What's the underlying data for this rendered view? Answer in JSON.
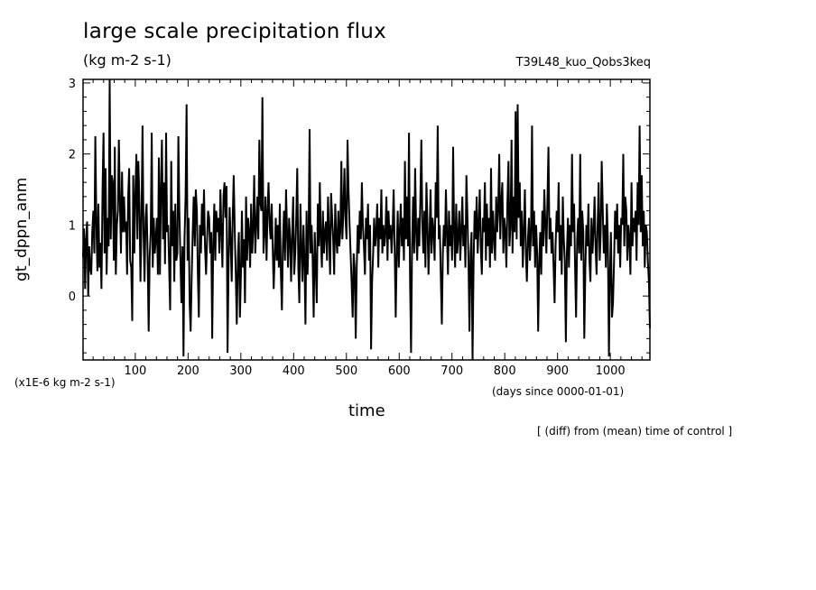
{
  "chart_data": {
    "type": "line",
    "title": "large scale precipitation flux",
    "subtitle": "(kg m-2 s-1)",
    "run_label": "T39L48_kuo_Qobs3keq",
    "ylabel": "gt_dppn_anm",
    "xlabel": "time",
    "y_scale_note": "(x1E-6 kg m-2 s-1)",
    "x_unit_note": "(days since 0000-01-01)",
    "footnote": "[ (diff) from (mean) time of control ]",
    "xlim": [
      1,
      1075
    ],
    "ylim": [
      -0.9,
      3.05
    ],
    "x_ticks": [
      100,
      200,
      300,
      400,
      500,
      600,
      700,
      800,
      900,
      1000
    ],
    "y_ticks": [
      0,
      1,
      2,
      3
    ],
    "grid": false,
    "series": [
      {
        "values": [
          0.55,
          0.95,
          0.1,
          0.8,
          1.05,
          0.0,
          0.7,
          0.4,
          0.3,
          0.9,
          1.2,
          0.6,
          2.25,
          1.0,
          0.35,
          1.3,
          0.4,
          0.75,
          0.1,
          1.5,
          2.3,
          0.6,
          1.8,
          0.3,
          1.1,
          0.7,
          3.05,
          0.8,
          1.7,
          1.6,
          0.5,
          2.1,
          0.3,
          1.0,
          1.2,
          2.2,
          1.3,
          0.6,
          1.75,
          0.9,
          1.4,
          0.9,
          1.05,
          0.3,
          1.4,
          1.8,
          0.5,
          0.4,
          -0.35,
          1.7,
          0.6,
          1.4,
          2.0,
          0.8,
          1.9,
          1.3,
          0.2,
          1.0,
          2.4,
          0.9,
          0.2,
          1.1,
          1.3,
          0.6,
          -0.5,
          0.55,
          0.9,
          2.3,
          0.4,
          1.1,
          0.6,
          0.8,
          1.1,
          0.3,
          1.95,
          0.3,
          1.5,
          2.2,
          0.8,
          1.6,
          0.45,
          2.3,
          0.9,
          1.0,
          0.4,
          -0.2,
          1.9,
          0.7,
          1.2,
          0.2,
          1.3,
          0.5,
          0.6,
          2.25,
          1.2,
          0.5,
          -0.1,
          0.7,
          -0.85,
          0.8,
          1.4,
          2.7,
          0.5,
          1.1,
          -0.1,
          -0.5,
          0.3,
          0.9,
          1.4,
          0.7,
          1.5,
          1.2,
          0.3,
          -0.3,
          1.0,
          0.6,
          1.3,
          0.85,
          1.5,
          0.7,
          0.3,
          0.8,
          1.2,
          1.1,
          0.6,
          0.9,
          -0.6,
          0.7,
          1.3,
          0.5,
          1.2,
          0.9,
          1.1,
          0.6,
          1.5,
          0.9,
          0.4,
          1.4,
          1.6,
          1.1,
          1.55,
          -0.8,
          0.5,
          1.25,
          0.8,
          0.2,
          1.1,
          1.7,
          0.9,
          0.3,
          -0.4,
          0.5,
          0.9,
          -0.3,
          0.3,
          1.2,
          0.4,
          0.8,
          -0.1,
          1.4,
          0.5,
          1.1,
          0.9,
          0.4,
          1.3,
          0.6,
          0.95,
          1.7,
          0.6,
          1.0,
          1.4,
          0.8,
          2.2,
          1.3,
          1.2,
          2.8,
          0.6,
          0.9,
          1.4,
          0.5,
          1.2,
          1.6,
          1.0,
          0.8,
          1.3,
          0.7,
          0.1,
          0.6,
          1.1,
          0.5,
          1.0,
          0.4,
          1.3,
          0.3,
          -0.2,
          0.7,
          1.2,
          0.5,
          1.5,
          0.9,
          0.4,
          1.1,
          0.8,
          0.2,
          0.9,
          1.4,
          0.3,
          0.6,
          1.1,
          1.8,
          0.4,
          -0.1,
          1.3,
          0.7,
          0.2,
          1.0,
          0.5,
          -0.4,
          1.2,
          0.3,
          0.8,
          2.35,
          0.6,
          1.0,
          0.5,
          -0.3,
          0.9,
          0.4,
          -0.1,
          1.3,
          0.7,
          1.6,
          0.8,
          0.4,
          1.2,
          0.6,
          0.9,
          1.05,
          0.5,
          1.4,
          0.9,
          0.3,
          1.45,
          1.1,
          0.8,
          0.3,
          1.3,
          0.8,
          0.6,
          1.2,
          0.7,
          0.9,
          1.9,
          0.8,
          1.2,
          1.8,
          1.1,
          0.8,
          2.2,
          1.5,
          1.0,
          0.6,
          0.2,
          -0.3,
          0.6,
          0.4,
          -0.6,
          0.4,
          1.0,
          0.6,
          1.2,
          0.8,
          1.6,
          1.0,
          0.7,
          0.3,
          1.1,
          0.8,
          1.3,
          0.5,
          1.0,
          -0.75,
          0.2,
          0.6,
          1.1,
          0.7,
          0.9,
          1.3,
          0.4,
          1.1,
          0.8,
          1.5,
          0.6,
          1.0,
          0.7,
          0.9,
          1.4,
          0.5,
          1.2,
          0.8,
          1.0,
          0.6,
          0.95,
          1.5,
          0.7,
          -0.3,
          0.6,
          1.2,
          0.4,
          0.9,
          1.3,
          0.7,
          1.1,
          0.5,
          1.9,
          0.8,
          1.4,
          0.7,
          2.3,
          0.2,
          -0.8,
          0.7,
          1.4,
          0.6,
          1.8,
          0.9,
          0.5,
          1.1,
          0.7,
          1.3,
          2.2,
          1.0,
          0.6,
          1.2,
          0.4,
          1.6,
          1.0,
          0.3,
          0.8,
          1.5,
          0.6,
          1.1,
          0.9,
          0.5,
          1.6,
          1.1,
          2.4,
          0.8,
          1.0,
          0.3,
          -0.4,
          0.6,
          1.0,
          0.7,
          1.5,
          0.9,
          0.3,
          1.2,
          0.7,
          1.0,
          0.5,
          2.1,
          0.9,
          0.4,
          1.3,
          0.6,
          0.8,
          1.2,
          0.5,
          0.9,
          1.4,
          0.7,
          1.0,
          0.4,
          1.7,
          1.1,
          0.5,
          -0.5,
          0.6,
          0.9,
          -0.9,
          0.5,
          1.2,
          0.8,
          1.4,
          0.6,
          1.0,
          1.5,
          0.7,
          0.3,
          1.1,
          0.9,
          1.6,
          0.5,
          1.3,
          0.7,
          1.1,
          0.4,
          1.8,
          0.6,
          1.2,
          0.8,
          0.5,
          1.4,
          0.9,
          1.2,
          2.0,
          0.8,
          1.3,
          1.6,
          0.6,
          1.1,
          0.9,
          0.4,
          1.3,
          1.9,
          0.7,
          1.0,
          2.2,
          0.6,
          1.4,
          0.9,
          2.6,
          0.8,
          2.7,
          1.1,
          1.6,
          0.7,
          1.2,
          0.4,
          0.9,
          1.5,
          0.6,
          0.2,
          0.8,
          1.1,
          0.5,
          0.9,
          2.4,
          0.7,
          1.2,
          0.4,
          1.0,
          0.6,
          -0.5,
          0.5,
          0.9,
          0.3,
          1.2,
          0.7,
          1.5,
          1.0,
          0.6,
          1.3,
          2.1,
          0.8,
          1.1,
          0.6,
          0.9,
          0.4,
          -0.1,
          0.7,
          1.2,
          0.9,
          1.6,
          0.5,
          1.0,
          0.3,
          1.4,
          0.8,
          0.5,
          -0.65,
          0.6,
          1.1,
          0.4,
          1.0,
          0.7,
          2.0,
          0.9,
          1.3,
          0.4,
          -0.3,
          0.8,
          1.1,
          0.6,
          2.0,
          0.5,
          1.2,
          0.9,
          -0.6,
          0.4,
          1.0,
          0.7,
          1.3,
          0.5,
          0.2,
          1.1,
          0.6,
          0.9,
          1.4,
          0.7,
          0.3,
          1.0,
          1.6,
          0.5,
          0.9,
          1.9,
          1.2,
          0.6,
          1.0,
          0.4,
          1.3,
          0.8,
          -0.85,
          0.3,
          0.9,
          -0.3,
          -0.1,
          0.5,
          1.2,
          0.8,
          1.3,
          0.6,
          1.0,
          0.4,
          1.1,
          1.0,
          2.0,
          0.7,
          1.4,
          1.2,
          0.5,
          1.0,
          0.8,
          0.3,
          1.6,
          0.7,
          1.1,
          0.9,
          1.2,
          0.5,
          1.6,
          1.0,
          2.4,
          0.9,
          1.7,
          0.7,
          1.2,
          0.4,
          1.0,
          0.9,
          0.5,
          0.2,
          -0.45
        ]
      }
    ]
  }
}
